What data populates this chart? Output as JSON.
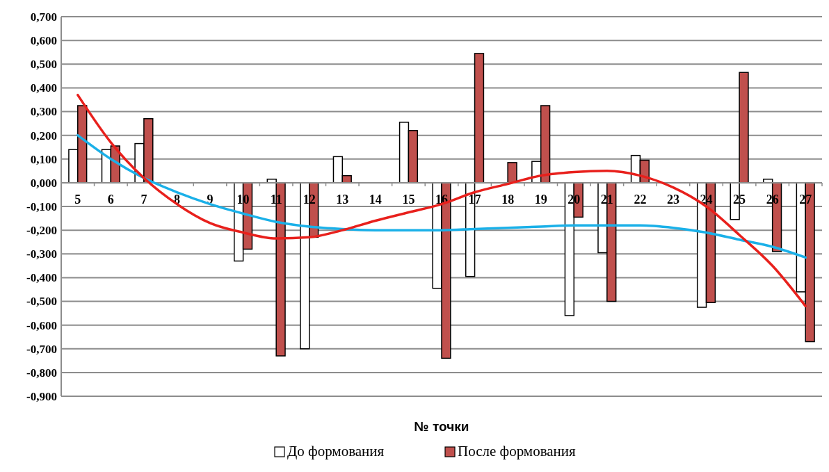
{
  "chart_data": {
    "type": "bar",
    "xlabel": "№ точки",
    "categories": [
      "5",
      "6",
      "7",
      "8",
      "9",
      "10",
      "11",
      "12",
      "13",
      "14",
      "15",
      "16",
      "17",
      "18",
      "19",
      "20",
      "21",
      "22",
      "23",
      "24",
      "25",
      "26",
      "27"
    ],
    "series": [
      {
        "name": "До формования",
        "color": "#ffffff",
        "values": [
          0.14,
          0.14,
          0.165,
          0,
          0,
          -0.33,
          0.015,
          -0.7,
          0.11,
          0,
          0.255,
          -0.445,
          -0.395,
          0,
          0.09,
          -0.56,
          -0.295,
          0.115,
          0,
          -0.525,
          -0.155,
          0.015,
          -0.46
        ]
      },
      {
        "name": "После формования",
        "color": "#c0504d",
        "values": [
          0.325,
          0.155,
          0.27,
          0,
          0,
          -0.28,
          -0.73,
          -0.23,
          0.03,
          0,
          0.22,
          -0.74,
          0.545,
          0.085,
          0.325,
          -0.145,
          -0.5,
          0.095,
          0,
          -0.505,
          0.465,
          -0.29,
          -0.67
        ]
      },
      {
        "type": "line",
        "color": "#1ab0e8",
        "values": [
          0.2,
          0.1,
          0.02,
          -0.04,
          -0.09,
          -0.13,
          -0.165,
          -0.185,
          -0.195,
          -0.2,
          -0.2,
          -0.2,
          -0.195,
          -0.19,
          -0.185,
          -0.18,
          -0.18,
          -0.18,
          -0.19,
          -0.21,
          -0.24,
          -0.27,
          -0.315
        ]
      },
      {
        "type": "line",
        "color": "#e8201c",
        "values": [
          0.37,
          0.17,
          0.02,
          -0.09,
          -0.17,
          -0.21,
          -0.235,
          -0.23,
          -0.2,
          -0.16,
          -0.125,
          -0.09,
          -0.04,
          -0.005,
          0.03,
          0.045,
          0.05,
          0.03,
          -0.02,
          -0.1,
          -0.22,
          -0.35,
          -0.52
        ]
      }
    ],
    "ylim": [
      -0.9,
      0.7
    ],
    "yticks": [
      {
        "value": 0.7,
        "label": "0,700"
      },
      {
        "value": 0.6,
        "label": "0,600"
      },
      {
        "value": 0.5,
        "label": "0,500"
      },
      {
        "value": 0.4,
        "label": "0,400"
      },
      {
        "value": 0.3,
        "label": "0,300"
      },
      {
        "value": 0.2,
        "label": "0,200"
      },
      {
        "value": 0.1,
        "label": "0,100"
      },
      {
        "value": 0,
        "label": "0,000"
      },
      {
        "value": -0.1,
        "label": "-0,100"
      },
      {
        "value": -0.2,
        "label": "-0,200"
      },
      {
        "value": -0.3,
        "label": "-0,300"
      },
      {
        "value": -0.4,
        "label": "-0,400"
      },
      {
        "value": -0.5,
        "label": "-0,500"
      },
      {
        "value": -0.6,
        "label": "-0,600"
      },
      {
        "value": -0.7,
        "label": "-0,700"
      },
      {
        "value": -0.8,
        "label": "-0,800"
      },
      {
        "value": -0.9,
        "label": "-0,900"
      }
    ],
    "grid": "y",
    "legend": "bottom",
    "line_style": "solid",
    "marker": "none"
  }
}
